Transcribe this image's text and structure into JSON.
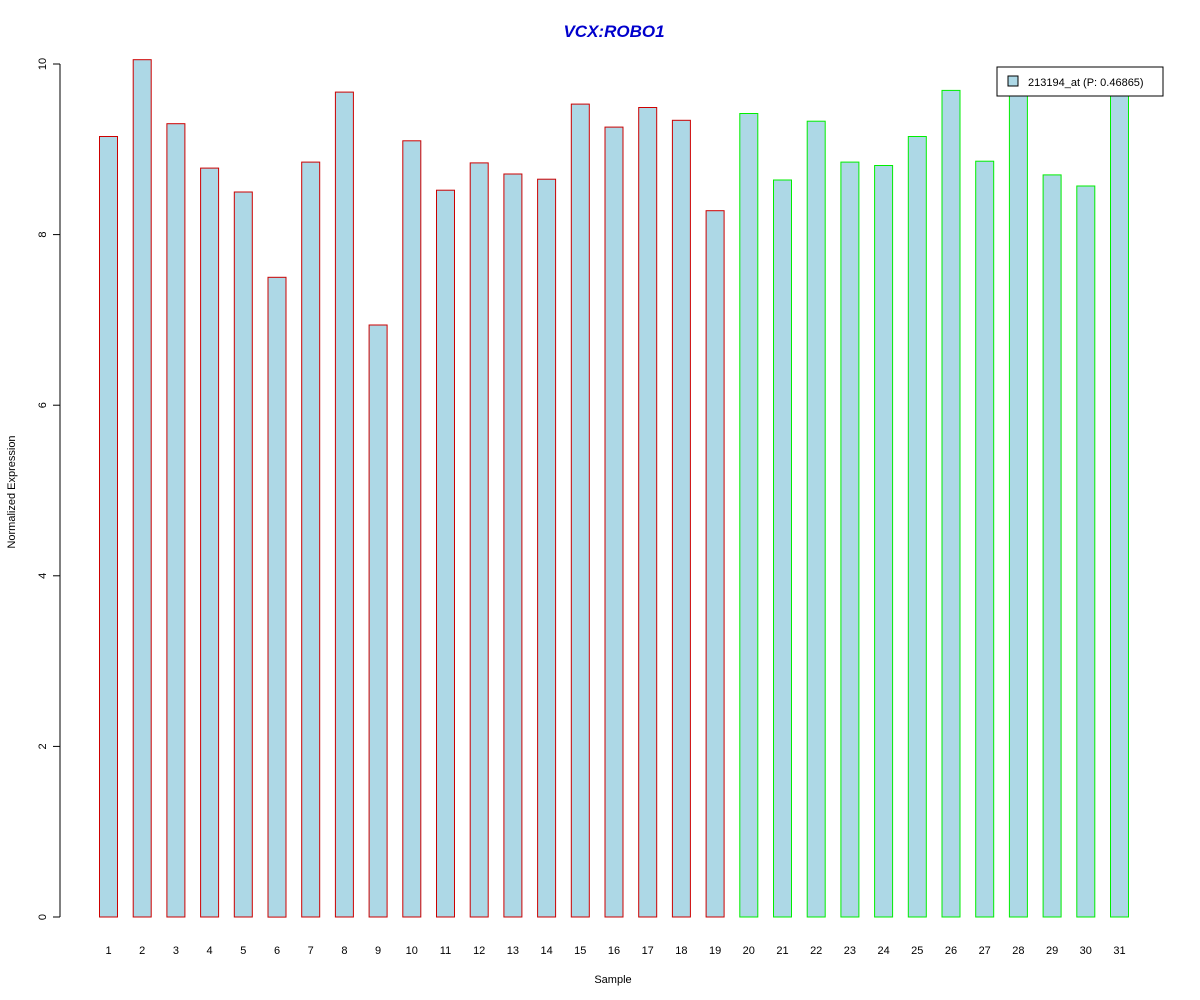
{
  "chart_data": {
    "type": "bar",
    "title": "VCX:ROBO1",
    "xlabel": "Sample",
    "ylabel": "Normalized Expression",
    "categories": [
      "1",
      "2",
      "3",
      "4",
      "5",
      "6",
      "7",
      "8",
      "9",
      "10",
      "11",
      "12",
      "13",
      "14",
      "15",
      "16",
      "17",
      "18",
      "19",
      "20",
      "21",
      "22",
      "23",
      "24",
      "25",
      "26",
      "27",
      "28",
      "29",
      "30",
      "31"
    ],
    "values": [
      9.15,
      10.05,
      9.3,
      8.78,
      8.5,
      7.5,
      8.85,
      9.67,
      6.94,
      9.1,
      8.52,
      8.84,
      8.71,
      8.65,
      9.53,
      9.26,
      9.49,
      9.34,
      8.28,
      9.42,
      8.64,
      9.33,
      8.85,
      8.81,
      9.15,
      9.69,
      8.86,
      9.67,
      8.7,
      8.57,
      9.67
    ],
    "group_border_colors": [
      "#cc0000",
      "#cc0000",
      "#cc0000",
      "#cc0000",
      "#cc0000",
      "#cc0000",
      "#cc0000",
      "#cc0000",
      "#cc0000",
      "#cc0000",
      "#cc0000",
      "#cc0000",
      "#cc0000",
      "#cc0000",
      "#cc0000",
      "#cc0000",
      "#cc0000",
      "#cc0000",
      "#cc0000",
      "#00ee00",
      "#00ee00",
      "#00ee00",
      "#00ee00",
      "#00ee00",
      "#00ee00",
      "#00ee00",
      "#00ee00",
      "#00ee00",
      "#00ee00",
      "#00ee00",
      "#00ee00"
    ],
    "bar_fill": "#add8e6",
    "title_color": "#0000cc",
    "ylim": [
      0,
      10
    ],
    "yticks": [
      0,
      2,
      4,
      6,
      8,
      10
    ],
    "grid": false,
    "legend": {
      "position": "top-right",
      "entries": [
        {
          "label": "213194_at (P: 0.46865)",
          "fill": "#add8e6"
        }
      ]
    }
  }
}
